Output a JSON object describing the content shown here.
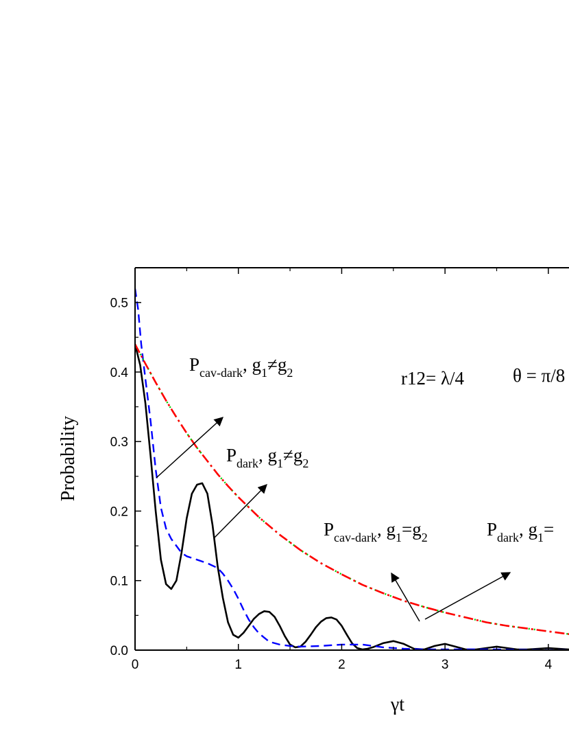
{
  "chart_data": {
    "type": "line",
    "xlabel": "γt",
    "ylabel": "Probability",
    "xlim": [
      0,
      4.3
    ],
    "ylim": [
      0,
      0.55
    ],
    "xticks": [
      "0",
      "1",
      "2",
      "3",
      "4"
    ],
    "yticks": [
      "0.0",
      "0.1",
      "0.2",
      "0.3",
      "0.4",
      "0.5"
    ],
    "parameters": {
      "r12": "r12= λ/4",
      "theta": "θ = π/8"
    },
    "annotations": [
      {
        "base": "P",
        "sub": "cav-dark",
        "rest_a": ", g",
        "sub1": "1",
        "rel": "≠",
        "rest_b": "g",
        "sub2": "2"
      },
      {
        "base": "P",
        "sub": "dark",
        "rest_a": ", g",
        "sub1": "1",
        "rel": "≠",
        "rest_b": "g",
        "sub2": "2"
      },
      {
        "base": "P",
        "sub": "cav-dark",
        "rest_a": ", g",
        "sub1": "1",
        "rel": "=",
        "rest_b": "g",
        "sub2": "2"
      },
      {
        "base": "P",
        "sub": "dark",
        "rest_a": ", g",
        "sub1": "1",
        "rel": "=",
        "rest_b": "",
        "sub2": ""
      }
    ],
    "series": [
      {
        "style": "solid",
        "color": "#000000",
        "x": [
          0,
          0.05,
          0.1,
          0.15,
          0.2,
          0.25,
          0.3,
          0.35,
          0.4,
          0.45,
          0.5,
          0.55,
          0.6,
          0.65,
          0.7,
          0.75,
          0.8,
          0.85,
          0.9,
          0.95,
          1.0,
          1.05,
          1.1,
          1.15,
          1.2,
          1.25,
          1.3,
          1.35,
          1.4,
          1.45,
          1.5,
          1.55,
          1.6,
          1.65,
          1.7,
          1.75,
          1.8,
          1.85,
          1.9,
          1.95,
          2.0,
          2.05,
          2.1,
          2.15,
          2.2,
          2.25,
          2.3,
          2.4,
          2.5,
          2.6,
          2.7,
          2.8,
          2.9,
          3.0,
          3.1,
          3.2,
          3.3,
          3.4,
          3.5,
          3.6,
          3.7,
          3.8,
          3.9,
          4.0,
          4.1,
          4.2,
          4.3
        ],
        "y": [
          0.44,
          0.41,
          0.355,
          0.28,
          0.2,
          0.13,
          0.095,
          0.088,
          0.1,
          0.14,
          0.19,
          0.225,
          0.238,
          0.24,
          0.225,
          0.18,
          0.12,
          0.075,
          0.04,
          0.022,
          0.018,
          0.025,
          0.035,
          0.045,
          0.052,
          0.056,
          0.055,
          0.048,
          0.035,
          0.02,
          0.008,
          0.004,
          0.005,
          0.012,
          0.022,
          0.033,
          0.041,
          0.046,
          0.047,
          0.044,
          0.035,
          0.022,
          0.01,
          0.003,
          0.001,
          0.002,
          0.004,
          0.01,
          0.013,
          0.009,
          0.002,
          0.001,
          0.006,
          0.009,
          0.005,
          0.001,
          0.001,
          0.003,
          0.005,
          0.003,
          0.001,
          0.001,
          0.002,
          0.003,
          0.002,
          0.001,
          0.0
        ]
      },
      {
        "style": "dashed",
        "color": "#0000ff",
        "x": [
          0,
          0.03,
          0.06,
          0.1,
          0.15,
          0.2,
          0.25,
          0.3,
          0.35,
          0.4,
          0.45,
          0.5,
          0.6,
          0.7,
          0.8,
          0.85,
          0.9,
          0.95,
          1.0,
          1.05,
          1.1,
          1.15,
          1.2,
          1.25,
          1.3,
          1.4,
          1.5,
          1.6,
          1.8,
          2.0,
          2.2,
          2.4,
          2.6,
          2.8,
          3.0,
          3.5,
          4.0,
          4.3
        ],
        "y": [
          0.52,
          0.49,
          0.44,
          0.39,
          0.33,
          0.26,
          0.205,
          0.175,
          0.16,
          0.15,
          0.14,
          0.135,
          0.13,
          0.125,
          0.118,
          0.11,
          0.1,
          0.088,
          0.074,
          0.058,
          0.044,
          0.033,
          0.024,
          0.018,
          0.012,
          0.008,
          0.006,
          0.005,
          0.006,
          0.008,
          0.008,
          0.004,
          0.002,
          0.001,
          0.001,
          0.001,
          0.0,
          0.0
        ]
      },
      {
        "style": "dotted",
        "color": "#00cc00",
        "x": [
          0,
          0.1,
          0.2,
          0.3,
          0.4,
          0.5,
          0.6,
          0.7,
          0.8,
          0.9,
          1.0,
          1.2,
          1.4,
          1.6,
          1.8,
          2.0,
          2.2,
          2.4,
          2.6,
          2.8,
          3.0,
          3.2,
          3.4,
          3.6,
          3.8,
          4.0,
          4.2,
          4.3
        ],
        "y": [
          0.44,
          0.412,
          0.385,
          0.359,
          0.335,
          0.312,
          0.291,
          0.272,
          0.253,
          0.236,
          0.22,
          0.191,
          0.166,
          0.144,
          0.125,
          0.109,
          0.094,
          0.082,
          0.071,
          0.062,
          0.054,
          0.047,
          0.04,
          0.035,
          0.031,
          0.027,
          0.023,
          0.022
        ]
      },
      {
        "style": "dashdot",
        "color": "#ff0000",
        "x": [
          0,
          0.1,
          0.2,
          0.3,
          0.4,
          0.5,
          0.6,
          0.7,
          0.8,
          0.9,
          1.0,
          1.2,
          1.4,
          1.6,
          1.8,
          2.0,
          2.2,
          2.4,
          2.6,
          2.8,
          3.0,
          3.2,
          3.4,
          3.6,
          3.8,
          4.0,
          4.2,
          4.3
        ],
        "y": [
          0.44,
          0.412,
          0.385,
          0.359,
          0.335,
          0.312,
          0.291,
          0.272,
          0.253,
          0.236,
          0.22,
          0.191,
          0.166,
          0.144,
          0.125,
          0.109,
          0.094,
          0.082,
          0.071,
          0.062,
          0.054,
          0.047,
          0.04,
          0.035,
          0.031,
          0.027,
          0.023,
          0.022
        ]
      }
    ]
  }
}
